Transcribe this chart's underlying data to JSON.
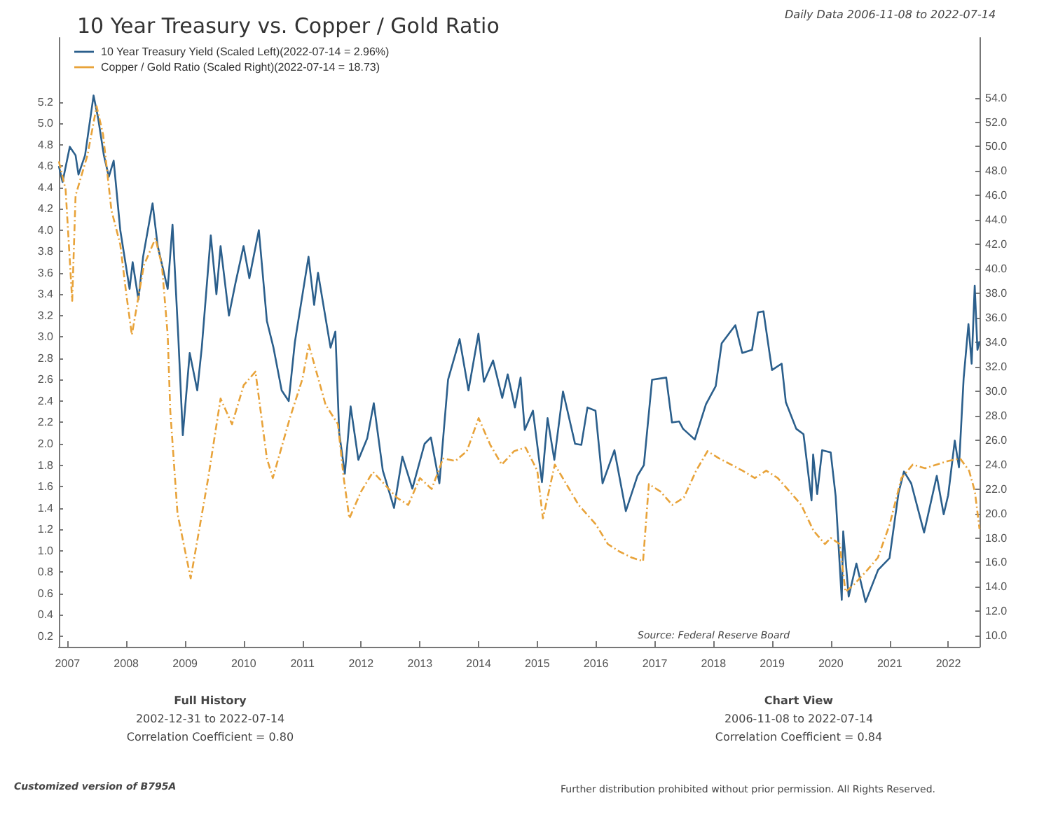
{
  "chart_data": {
    "type": "line",
    "title": "10 Year Treasury vs. Copper / Gold Ratio",
    "legend": "top left",
    "grid": false,
    "marker": "none",
    "xlim": [
      "2006-11-08",
      "2022-07-14"
    ],
    "xticks": [
      {
        "value": "2007-01-01",
        "label": "2007"
      },
      {
        "value": "2008-01-01",
        "label": "2008"
      },
      {
        "value": "2009-01-01",
        "label": "2009"
      },
      {
        "value": "2010-01-01",
        "label": "2010"
      },
      {
        "value": "2011-01-01",
        "label": "2011"
      },
      {
        "value": "2012-01-01",
        "label": "2012"
      },
      {
        "value": "2013-01-01",
        "label": "2013"
      },
      {
        "value": "2014-01-01",
        "label": "2014"
      },
      {
        "value": "2015-01-01",
        "label": "2015"
      },
      {
        "value": "2016-01-01",
        "label": "2016"
      },
      {
        "value": "2017-01-01",
        "label": "2017"
      },
      {
        "value": "2018-01-01",
        "label": "2018"
      },
      {
        "value": "2019-01-01",
        "label": "2019"
      },
      {
        "value": "2020-01-01",
        "label": "2020"
      },
      {
        "value": "2021-01-01",
        "label": "2021"
      },
      {
        "value": "2022-01-01",
        "label": "2022"
      }
    ],
    "ylim": [
      0.1,
      5.8
    ],
    "yticks": [
      {
        "value": 0.2,
        "label": "0.2"
      },
      {
        "value": 0.4,
        "label": "0.4"
      },
      {
        "value": 0.6,
        "label": "0.6"
      },
      {
        "value": 0.8,
        "label": "0.8"
      },
      {
        "value": 1.0,
        "label": "1.0"
      },
      {
        "value": 1.2,
        "label": "1.2"
      },
      {
        "value": 1.4,
        "label": "1.4"
      },
      {
        "value": 1.6,
        "label": "1.6"
      },
      {
        "value": 1.8,
        "label": "1.8"
      },
      {
        "value": 2.0,
        "label": "2.0"
      },
      {
        "value": 2.2,
        "label": "2.2"
      },
      {
        "value": 2.4,
        "label": "2.4"
      },
      {
        "value": 2.6,
        "label": "2.6"
      },
      {
        "value": 2.8,
        "label": "2.8"
      },
      {
        "value": 3.0,
        "label": "3.0"
      },
      {
        "value": 3.2,
        "label": "3.2"
      },
      {
        "value": 3.4,
        "label": "3.4"
      },
      {
        "value": 3.6,
        "label": "3.6"
      },
      {
        "value": 3.8,
        "label": "3.8"
      },
      {
        "value": 4.0,
        "label": "4.0"
      },
      {
        "value": 4.2,
        "label": "4.2"
      },
      {
        "value": 4.4,
        "label": "4.4"
      },
      {
        "value": 4.6,
        "label": "4.6"
      },
      {
        "value": 4.8,
        "label": "4.8"
      },
      {
        "value": 5.0,
        "label": "5.0"
      },
      {
        "value": 5.2,
        "label": "5.2"
      }
    ],
    "y2lim": [
      9.1,
      58.9
    ],
    "y2ticks": [
      {
        "value": 10,
        "label": "10.0"
      },
      {
        "value": 12,
        "label": "12.0"
      },
      {
        "value": 14,
        "label": "14.0"
      },
      {
        "value": 16,
        "label": "16.0"
      },
      {
        "value": 18,
        "label": "18.0"
      },
      {
        "value": 20,
        "label": "20.0"
      },
      {
        "value": 22,
        "label": "22.0"
      },
      {
        "value": 24,
        "label": "24.0"
      },
      {
        "value": 26,
        "label": "26.0"
      },
      {
        "value": 28,
        "label": "28.0"
      },
      {
        "value": 30,
        "label": "30.0"
      },
      {
        "value": 32,
        "label": "32.0"
      },
      {
        "value": 34,
        "label": "34.0"
      },
      {
        "value": 36,
        "label": "36.0"
      },
      {
        "value": 38,
        "label": "38.0"
      },
      {
        "value": 40,
        "label": "40.0"
      },
      {
        "value": 42,
        "label": "42.0"
      },
      {
        "value": 44,
        "label": "44.0"
      },
      {
        "value": 46,
        "label": "46.0"
      },
      {
        "value": 48,
        "label": "48.0"
      },
      {
        "value": 50,
        "label": "50.0"
      },
      {
        "value": 52,
        "label": "52.0"
      },
      {
        "value": 54,
        "label": "54.0"
      }
    ],
    "annotations": [
      "Daily Data 2006-11-08 to 2022-07-14",
      "Source: Federal Reserve Board",
      "Full History",
      "2002-12-31 to 2022-07-14",
      "Correlation Coefficient = 0.80",
      "Chart View",
      "2006-11-08 to 2022-07-14",
      "Correlation Coefficient = 0.84",
      "Customized version of B795A",
      "Further distribution prohibited without prior permission. All Rights Reserved."
    ],
    "series": [
      {
        "name": "10 Year Treasury Yield (Scaled Left)(2022-07-14 = 2.96%)",
        "color": "#2b5f8c",
        "line_style": "solid",
        "x": [
          "2006-11-08",
          "2006-12-01",
          "2007-01-15",
          "2007-02-20",
          "2007-03-10",
          "2007-04-20",
          "2007-06-12",
          "2007-07-10",
          "2007-08-15",
          "2007-09-15",
          "2007-10-15",
          "2007-11-25",
          "2008-01-22",
          "2008-02-10",
          "2008-03-17",
          "2008-04-15",
          "2008-06-13",
          "2008-07-15",
          "2008-09-15",
          "2008-10-15",
          "2008-11-20",
          "2008-12-18",
          "2009-01-30",
          "2009-03-18",
          "2009-04-15",
          "2009-06-10",
          "2009-07-15",
          "2009-08-10",
          "2009-10-01",
          "2009-11-10",
          "2009-12-31",
          "2010-02-05",
          "2010-04-05",
          "2010-05-25",
          "2010-07-05",
          "2010-08-25",
          "2010-10-08",
          "2010-11-15",
          "2011-02-08",
          "2011-03-15",
          "2011-04-08",
          "2011-06-25",
          "2011-07-25",
          "2011-08-18",
          "2011-09-22",
          "2011-10-28",
          "2011-12-15",
          "2012-02-08",
          "2012-03-20",
          "2012-05-15",
          "2012-07-24",
          "2012-09-14",
          "2012-11-15",
          "2013-01-30",
          "2013-03-10",
          "2013-05-02",
          "2013-06-25",
          "2013-09-05",
          "2013-10-30",
          "2013-12-31",
          "2014-02-03",
          "2014-04-01",
          "2014-05-28",
          "2014-07-01",
          "2014-08-15",
          "2014-09-19",
          "2014-10-15",
          "2014-12-05",
          "2015-01-30",
          "2015-03-06",
          "2015-04-17",
          "2015-06-10",
          "2015-08-24",
          "2015-10-02",
          "2015-11-09",
          "2015-12-29",
          "2016-02-11",
          "2016-04-25",
          "2016-07-05",
          "2016-09-15",
          "2016-10-25",
          "2016-12-15",
          "2017-03-13",
          "2017-04-18",
          "2017-06-01",
          "2017-06-26",
          "2017-09-07",
          "2017-11-15",
          "2018-01-15",
          "2018-02-21",
          "2018-05-17",
          "2018-06-29",
          "2018-08-29",
          "2018-10-05",
          "2018-11-08",
          "2018-12-31",
          "2019-03-01",
          "2019-03-27",
          "2019-05-31",
          "2019-07-15",
          "2019-09-03",
          "2019-09-13",
          "2019-10-08",
          "2019-11-08",
          "2019-12-31",
          "2020-01-31",
          "2020-03-09",
          "2020-03-18",
          "2020-04-21",
          "2020-06-08",
          "2020-08-04",
          "2020-10-21",
          "2020-12-31",
          "2021-02-25",
          "2021-03-31",
          "2021-05-15",
          "2021-08-03",
          "2021-10-21",
          "2021-12-03",
          "2021-12-31",
          "2022-02-10",
          "2022-03-08",
          "2022-04-06",
          "2022-05-06",
          "2022-05-26",
          "2022-06-14",
          "2022-07-01",
          "2022-07-14"
        ],
        "values": [
          4.6,
          4.45,
          4.78,
          4.7,
          4.52,
          4.7,
          5.26,
          5.05,
          4.7,
          4.5,
          4.65,
          4.0,
          3.45,
          3.7,
          3.35,
          3.75,
          4.25,
          3.85,
          3.45,
          4.05,
          3.0,
          2.08,
          2.85,
          2.5,
          2.9,
          3.95,
          3.4,
          3.85,
          3.2,
          3.5,
          3.85,
          3.55,
          4.0,
          3.15,
          2.9,
          2.5,
          2.4,
          2.95,
          3.75,
          3.3,
          3.6,
          2.9,
          3.05,
          2.1,
          1.72,
          2.35,
          1.85,
          2.05,
          2.38,
          1.75,
          1.4,
          1.88,
          1.58,
          2.0,
          2.06,
          1.63,
          2.6,
          2.98,
          2.5,
          3.03,
          2.58,
          2.78,
          2.43,
          2.65,
          2.34,
          2.62,
          2.13,
          2.31,
          1.64,
          2.24,
          1.85,
          2.49,
          2.0,
          1.99,
          2.34,
          2.31,
          1.63,
          1.94,
          1.37,
          1.7,
          1.8,
          2.6,
          2.62,
          2.2,
          2.21,
          2.14,
          2.04,
          2.37,
          2.54,
          2.94,
          3.11,
          2.85,
          2.88,
          3.23,
          3.24,
          2.69,
          2.75,
          2.39,
          2.14,
          2.09,
          1.47,
          1.9,
          1.53,
          1.94,
          1.92,
          1.51,
          0.54,
          1.18,
          0.57,
          0.88,
          0.52,
          0.82,
          0.93,
          1.54,
          1.74,
          1.63,
          1.17,
          1.7,
          1.34,
          1.52,
          2.03,
          1.78,
          2.61,
          3.12,
          2.75,
          3.48,
          2.88,
          2.96
        ]
      },
      {
        "name": "Copper / Gold Ratio (Scaled Right)(2022-07-14 = 18.73)",
        "color": "#e8a33a",
        "line_style": "dashed",
        "axis": "y2",
        "x": [
          "2006-11-08",
          "2006-12-20",
          "2007-01-30",
          "2007-02-20",
          "2007-05-05",
          "2007-07-01",
          "2007-08-10",
          "2007-10-01",
          "2007-11-25",
          "2008-01-01",
          "2008-02-05",
          "2008-04-20",
          "2008-07-01",
          "2008-08-10",
          "2008-09-15",
          "2008-10-01",
          "2008-11-15",
          "2009-02-05",
          "2009-05-25",
          "2009-08-10",
          "2009-10-20",
          "2010-01-01",
          "2010-03-15",
          "2010-05-25",
          "2010-07-01",
          "2010-10-15",
          "2011-01-01",
          "2011-02-10",
          "2011-05-25",
          "2011-08-10",
          "2011-09-15",
          "2011-10-20",
          "2012-01-01",
          "2012-03-15",
          "2012-05-25",
          "2012-08-10",
          "2012-10-20",
          "2013-01-01",
          "2013-03-15",
          "2013-05-25",
          "2013-08-10",
          "2013-10-20",
          "2014-01-01",
          "2014-03-15",
          "2014-05-25",
          "2014-08-10",
          "2014-10-20",
          "2015-01-01",
          "2015-02-05",
          "2015-04-20",
          "2015-07-01",
          "2015-09-15",
          "2016-01-01",
          "2016-03-15",
          "2016-05-25",
          "2016-08-10",
          "2016-10-20",
          "2016-11-25",
          "2017-02-05",
          "2017-04-20",
          "2017-07-01",
          "2017-09-15",
          "2017-11-25",
          "2018-02-05",
          "2018-04-20",
          "2018-07-01",
          "2018-09-15",
          "2018-11-25",
          "2019-02-05",
          "2019-04-20",
          "2019-07-01",
          "2019-09-15",
          "2019-11-25",
          "2020-01-01",
          "2020-02-25",
          "2020-04-01",
          "2020-05-25",
          "2020-08-10",
          "2020-10-20",
          "2021-01-01",
          "2021-03-15",
          "2021-05-25",
          "2021-08-10",
          "2021-10-20",
          "2022-01-01",
          "2022-03-15",
          "2022-05-10",
          "2022-06-15",
          "2022-07-14"
        ],
        "values": [
          48.8,
          46.5,
          37.4,
          46.0,
          49.3,
          53.3,
          51.0,
          44.8,
          42.0,
          38.0,
          34.6,
          40.3,
          42.5,
          40.3,
          34.6,
          28.4,
          20.0,
          14.7,
          22.9,
          29.4,
          27.3,
          30.5,
          31.6,
          24.5,
          22.9,
          27.8,
          31.0,
          33.8,
          28.9,
          27.3,
          22.9,
          19.6,
          21.8,
          23.4,
          22.4,
          21.3,
          20.7,
          22.9,
          22.0,
          24.5,
          24.3,
          25.1,
          27.8,
          25.6,
          24.0,
          25.1,
          25.4,
          23.5,
          19.6,
          24.0,
          22.4,
          20.7,
          19.1,
          17.5,
          16.9,
          16.4,
          16.1,
          22.4,
          21.8,
          20.7,
          21.3,
          23.5,
          25.1,
          24.5,
          24.0,
          23.5,
          22.9,
          23.5,
          22.9,
          21.8,
          20.7,
          18.6,
          17.5,
          18.0,
          17.5,
          13.6,
          14.2,
          15.3,
          16.4,
          19.1,
          22.9,
          24.0,
          23.7,
          24.0,
          24.3,
          24.5,
          23.5,
          21.8,
          18.73
        ]
      }
    ]
  }
}
